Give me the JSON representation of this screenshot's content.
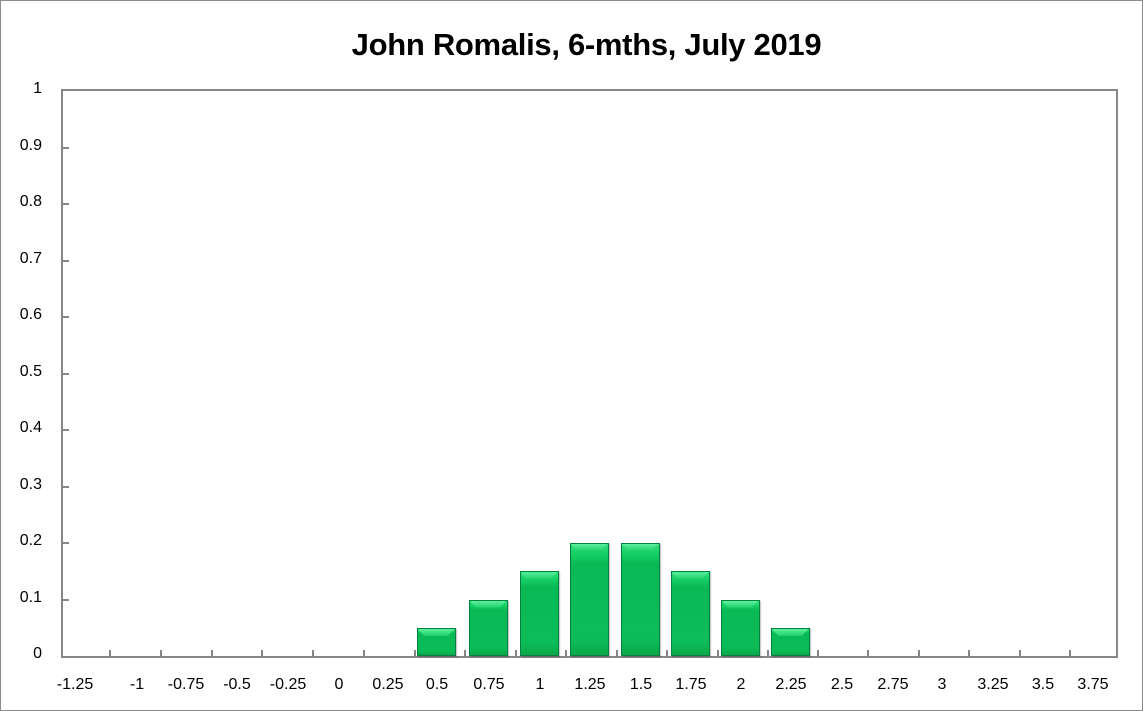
{
  "chart_data": {
    "type": "bar",
    "title": "John Romalis, 6-mths, July 2019",
    "xlabel": "",
    "ylabel": "",
    "ylim": [
      0,
      1
    ],
    "yticks": [
      "0",
      "0.1",
      "0.2",
      "0.3",
      "0.4",
      "0.5",
      "0.6",
      "0.7",
      "0.8",
      "0.9",
      "1"
    ],
    "categories": [
      "-1.25",
      "-1",
      "-0.75",
      "-0.5",
      "-0.25",
      "0",
      "0.25",
      "0.5",
      "0.75",
      "1",
      "1.25",
      "1.5",
      "1.75",
      "2",
      "2.25",
      "2.5",
      "2.75",
      "3",
      "3.25",
      "3.5",
      "3.75"
    ],
    "values": [
      0,
      0,
      0,
      0,
      0,
      0,
      0,
      0.05,
      0.1,
      0.15,
      0.2,
      0.2,
      0.15,
      0.1,
      0.05,
      0,
      0,
      0,
      0,
      0,
      0
    ],
    "bar_color": "#0cbc58",
    "grid": false,
    "legend": null
  }
}
